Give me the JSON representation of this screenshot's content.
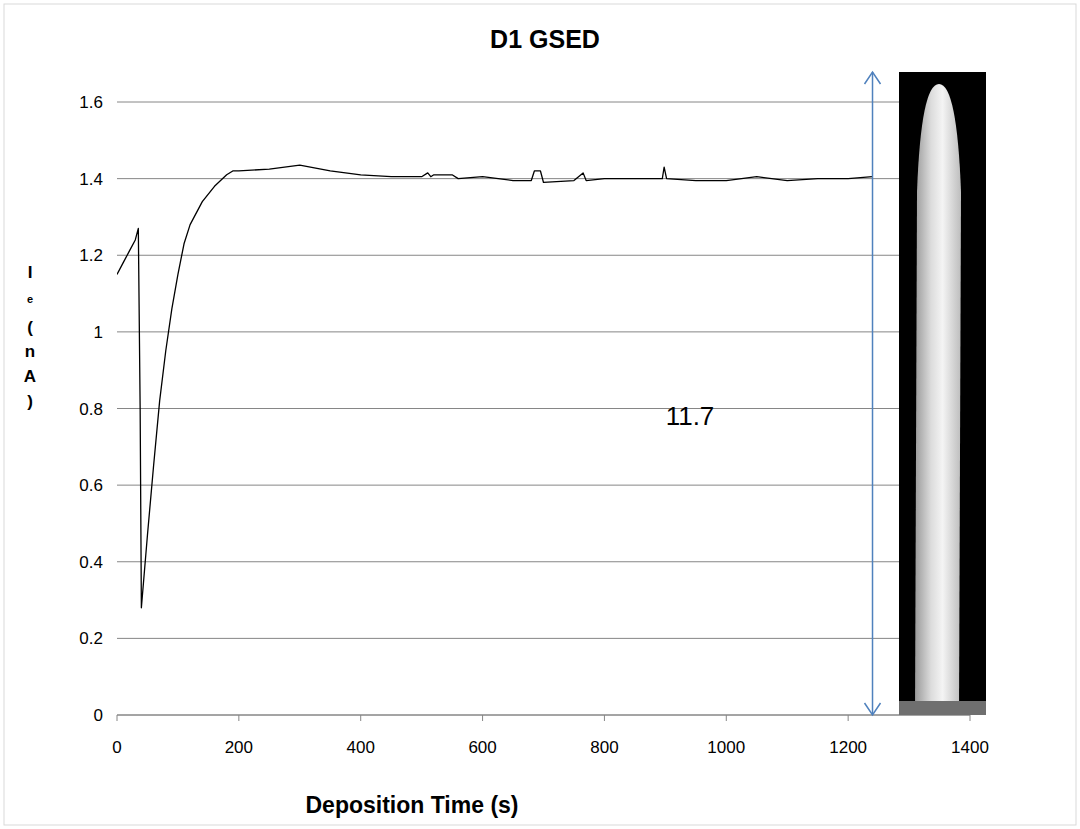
{
  "chart_data": {
    "type": "line",
    "title": "D1 GSED",
    "xlabel": "Deposition Time (s)",
    "ylabel": "I",
    "ylabel_subscript": "e",
    "ylabel_units": "(nA)",
    "annotations": [
      {
        "text": "11.7"
      }
    ],
    "x": [
      0,
      10,
      20,
      30,
      35,
      38,
      40,
      50,
      60,
      70,
      80,
      90,
      100,
      110,
      120,
      140,
      160,
      180,
      190,
      200,
      250,
      300,
      350,
      400,
      450,
      500,
      510,
      515,
      520,
      550,
      560,
      600,
      650,
      680,
      685,
      695,
      700,
      750,
      765,
      770,
      800,
      850,
      895,
      898,
      902,
      950,
      1000,
      1050,
      1100,
      1150,
      1200,
      1240
    ],
    "values": [
      1.15,
      1.18,
      1.21,
      1.24,
      1.27,
      0.8,
      0.28,
      0.47,
      0.65,
      0.82,
      0.95,
      1.06,
      1.15,
      1.23,
      1.28,
      1.34,
      1.38,
      1.41,
      1.42,
      1.42,
      1.425,
      1.435,
      1.42,
      1.41,
      1.405,
      1.405,
      1.415,
      1.405,
      1.41,
      1.41,
      1.4,
      1.405,
      1.395,
      1.395,
      1.42,
      1.42,
      1.39,
      1.395,
      1.415,
      1.395,
      1.4,
      1.4,
      1.4,
      1.43,
      1.4,
      1.395,
      1.395,
      1.405,
      1.395,
      1.4,
      1.4,
      1.405
    ],
    "color": "#000000",
    "xlim": [
      0,
      1400
    ],
    "xticks": [
      0,
      200,
      400,
      600,
      800,
      1000,
      1200,
      1400
    ],
    "ylim": [
      0,
      1.6
    ],
    "yticks": [
      0,
      0.2,
      0.4,
      0.6,
      0.8,
      1,
      1.2,
      1.4,
      1.6
    ],
    "grid": true
  }
}
